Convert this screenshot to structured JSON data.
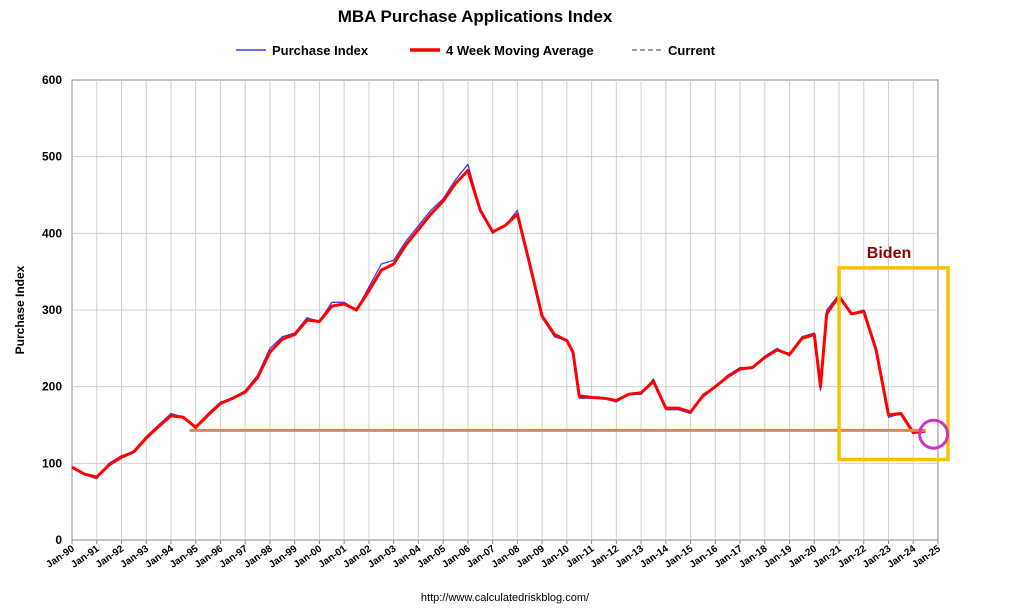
{
  "chart_data": {
    "type": "line",
    "title": "MBA Purchase Applications Index",
    "xlabel": "",
    "ylabel": "Purchase Index",
    "ylim": [
      0,
      600
    ],
    "yticks": [
      0,
      100,
      200,
      300,
      400,
      500,
      600
    ],
    "xlim": [
      "1990-01",
      "2025-01"
    ],
    "x_tick_labels": [
      "Jan-90",
      "Jan-91",
      "Jan-92",
      "Jan-93",
      "Jan-94",
      "Jan-95",
      "Jan-96",
      "Jan-97",
      "Jan-98",
      "Jan-99",
      "Jan-00",
      "Jan-01",
      "Jan-02",
      "Jan-03",
      "Jan-04",
      "Jan-05",
      "Jan-06",
      "Jan-07",
      "Jan-08",
      "Jan-09",
      "Jan-10",
      "Jan-11",
      "Jan-12",
      "Jan-13",
      "Jan-14",
      "Jan-15",
      "Jan-16",
      "Jan-17",
      "Jan-18",
      "Jan-19",
      "Jan-20",
      "Jan-21",
      "Jan-22",
      "Jan-23",
      "Jan-24",
      "Jan-25"
    ],
    "grid": true,
    "legend_position": "top-center",
    "series": [
      {
        "name": "Purchase Index",
        "color": "#3b3bff",
        "x": [
          "1990-01",
          "1990-07",
          "1991-01",
          "1991-07",
          "1992-01",
          "1992-07",
          "1993-01",
          "1993-07",
          "1994-01",
          "1994-07",
          "1995-01",
          "1995-07",
          "1996-01",
          "1996-07",
          "1997-01",
          "1997-07",
          "1998-01",
          "1998-07",
          "1999-01",
          "1999-07",
          "2000-01",
          "2000-07",
          "2001-01",
          "2001-07",
          "2002-01",
          "2002-07",
          "2003-01",
          "2003-07",
          "2004-01",
          "2004-07",
          "2005-01",
          "2005-07",
          "2006-01",
          "2006-07",
          "2007-01",
          "2007-07",
          "2008-01",
          "2008-07",
          "2009-01",
          "2009-07",
          "2010-01",
          "2010-04",
          "2010-07",
          "2011-01",
          "2011-07",
          "2012-01",
          "2012-07",
          "2013-01",
          "2013-07",
          "2014-01",
          "2014-07",
          "2015-01",
          "2015-07",
          "2016-01",
          "2016-07",
          "2017-01",
          "2017-07",
          "2018-01",
          "2018-07",
          "2019-01",
          "2019-07",
          "2020-01",
          "2020-04",
          "2020-07",
          "2021-01",
          "2021-07",
          "2022-01",
          "2022-07",
          "2023-01",
          "2023-07",
          "2024-01",
          "2024-07"
        ],
        "values": [
          95,
          85,
          80,
          100,
          110,
          115,
          135,
          150,
          165,
          160,
          145,
          165,
          180,
          185,
          195,
          215,
          250,
          265,
          270,
          290,
          285,
          310,
          310,
          300,
          330,
          360,
          365,
          390,
          410,
          430,
          445,
          470,
          490,
          430,
          400,
          410,
          430,
          360,
          290,
          265,
          260,
          245,
          185,
          185,
          185,
          180,
          190,
          190,
          210,
          170,
          170,
          165,
          190,
          200,
          215,
          225,
          225,
          240,
          250,
          240,
          265,
          270,
          195,
          300,
          320,
          295,
          300,
          245,
          160,
          165,
          140,
          142
        ]
      },
      {
        "name": "4 Week Moving Average",
        "color": "#ff0000",
        "x": [
          "1990-01",
          "1990-07",
          "1991-01",
          "1991-07",
          "1992-01",
          "1992-07",
          "1993-01",
          "1993-07",
          "1994-01",
          "1994-07",
          "1995-01",
          "1995-07",
          "1996-01",
          "1996-07",
          "1997-01",
          "1997-07",
          "1998-01",
          "1998-07",
          "1999-01",
          "1999-07",
          "2000-01",
          "2000-07",
          "2001-01",
          "2001-07",
          "2002-01",
          "2002-07",
          "2003-01",
          "2003-07",
          "2004-01",
          "2004-07",
          "2005-01",
          "2005-07",
          "2006-01",
          "2006-07",
          "2007-01",
          "2007-07",
          "2008-01",
          "2008-07",
          "2009-01",
          "2009-07",
          "2010-01",
          "2010-04",
          "2010-07",
          "2011-01",
          "2011-07",
          "2012-01",
          "2012-07",
          "2013-01",
          "2013-07",
          "2014-01",
          "2014-07",
          "2015-01",
          "2015-07",
          "2016-01",
          "2016-07",
          "2017-01",
          "2017-07",
          "2018-01",
          "2018-07",
          "2019-01",
          "2019-07",
          "2020-01",
          "2020-04",
          "2020-07",
          "2021-01",
          "2021-07",
          "2022-01",
          "2022-07",
          "2023-01",
          "2023-07",
          "2024-01",
          "2024-07"
        ],
        "values": [
          95,
          86,
          82,
          98,
          108,
          115,
          133,
          148,
          162,
          160,
          147,
          163,
          178,
          185,
          193,
          212,
          245,
          262,
          268,
          287,
          285,
          305,
          308,
          300,
          325,
          352,
          360,
          385,
          405,
          425,
          442,
          465,
          482,
          430,
          402,
          410,
          425,
          360,
          292,
          268,
          260,
          245,
          188,
          186,
          185,
          182,
          190,
          192,
          207,
          172,
          172,
          167,
          188,
          200,
          213,
          223,
          225,
          238,
          248,
          242,
          263,
          268,
          200,
          295,
          318,
          295,
          298,
          248,
          163,
          165,
          140,
          142
        ]
      },
      {
        "name": "Current",
        "color": "#9a9a9a",
        "style": "dashed",
        "x": [
          "1994-10",
          "2024-07"
        ],
        "values": [
          143,
          143
        ]
      }
    ],
    "annotations": [
      {
        "text": "Biden",
        "color": "#8b0000",
        "box_x_range": [
          "2021-01",
          "2025-01"
        ],
        "box_y_range": [
          105,
          355
        ],
        "box_color": "#ffc000"
      },
      {
        "text": "",
        "type": "horizontal-line",
        "color": "#ff7f27",
        "y": 143,
        "x_range": [
          "1994-10",
          "2024-07"
        ]
      },
      {
        "text": "",
        "type": "circle",
        "color": "#cc33cc",
        "x": "2024-07",
        "y": 138
      }
    ],
    "source": "http://www.calculatedriskblog.com/"
  }
}
